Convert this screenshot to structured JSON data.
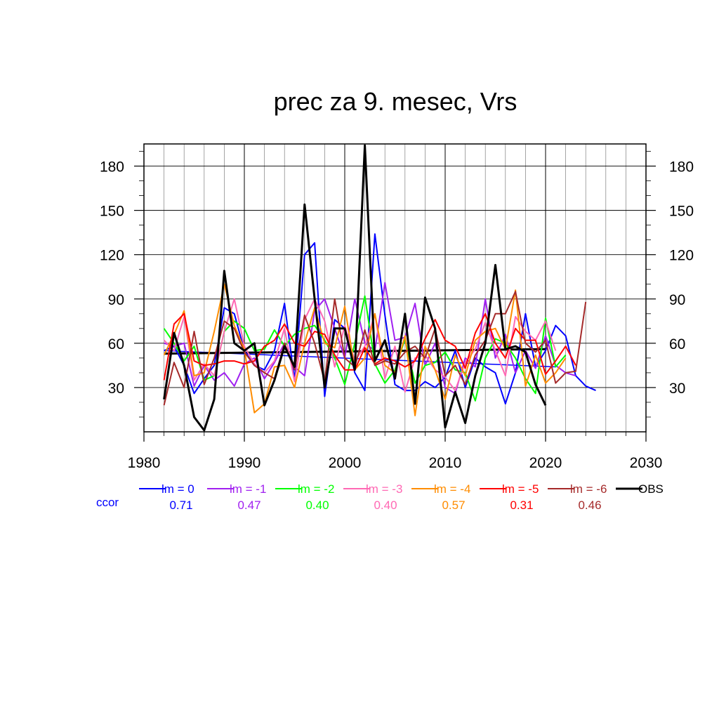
{
  "chart_data": {
    "type": "line",
    "title": "prec za 9. mesec, Vrs",
    "xlabel": "",
    "ylabel": "",
    "xlim": [
      1980,
      2030
    ],
    "ylim": [
      0,
      195
    ],
    "x_ticks": [
      1980,
      1990,
      2000,
      2010,
      2020,
      2030
    ],
    "y_ticks": [
      30,
      60,
      90,
      120,
      150,
      180
    ],
    "grid": true,
    "legend_position": "bottom",
    "ccor_label": "ccor",
    "series": [
      {
        "name": "lm = 0",
        "color": "#0000ff",
        "ccor": "0.71",
        "x_start": 1982,
        "values": [
          55,
          58,
          45,
          26,
          36,
          45,
          84,
          80,
          55,
          45,
          42,
          55,
          87,
          35,
          120,
          128,
          24,
          76,
          70,
          40,
          28,
          134,
          79,
          32,
          28,
          28,
          34,
          30,
          37,
          55,
          30,
          50,
          44,
          40,
          19,
          40,
          80,
          44,
          55,
          72,
          65,
          38,
          31,
          28
        ]
      },
      {
        "name": "lm = -1",
        "color": "#a020f0",
        "ccor": "0.47",
        "x_start": 1982,
        "values": [
          60,
          58,
          60,
          31,
          45,
          35,
          40,
          31,
          46,
          50,
          36,
          47,
          60,
          44,
          38,
          82,
          90,
          70,
          50,
          90,
          60,
          55,
          101,
          62,
          64,
          87,
          45,
          60,
          30,
          26,
          50,
          44,
          90,
          50,
          66,
          40,
          55,
          43,
          65,
          45,
          40,
          38
        ]
      },
      {
        "name": "lm = -2",
        "color": "#00ff00",
        "ccor": "0.40",
        "x_start": 1982,
        "values": [
          70,
          60,
          48,
          58,
          35,
          38,
          68,
          75,
          70,
          55,
          56,
          69,
          58,
          66,
          70,
          72,
          62,
          50,
          32,
          60,
          92,
          46,
          33,
          42,
          63,
          33,
          45,
          47,
          54,
          42,
          40,
          21,
          50,
          63,
          60,
          50,
          36,
          26,
          77,
          44,
          52
        ]
      },
      {
        "name": "lm = -3",
        "color": "#ff69b4",
        "ccor": "0.40",
        "x_start": 1982,
        "values": [
          62,
          55,
          78,
          35,
          46,
          38,
          68,
          90,
          58,
          46,
          40,
          48,
          70,
          34,
          76,
          90,
          75,
          44,
          72,
          48,
          58,
          80,
          36,
          58,
          27,
          50,
          52,
          42,
          37,
          28,
          47,
          56,
          74,
          55,
          38,
          78,
          68,
          62,
          75,
          55
        ]
      },
      {
        "name": "lm = -4",
        "color": "#ff8c00",
        "ccor": "0.57",
        "x_start": 1982,
        "values": [
          52,
          66,
          82,
          38,
          40,
          68,
          100,
          72,
          56,
          13,
          19,
          44,
          45,
          30,
          60,
          84,
          60,
          57,
          85,
          42,
          50,
          80,
          45,
          40,
          65,
          11,
          58,
          42,
          22,
          52,
          38,
          62,
          68,
          70,
          56,
          96,
          31,
          52,
          33,
          40,
          50
        ]
      },
      {
        "name": "lm = -5",
        "color": "#ff0000",
        "ccor": "0.31",
        "x_start": 1982,
        "values": [
          35,
          73,
          80,
          48,
          45,
          46,
          48,
          48,
          46,
          48,
          58,
          62,
          73,
          60,
          58,
          68,
          66,
          52,
          42,
          42,
          57,
          46,
          50,
          48,
          44,
          48,
          63,
          76,
          62,
          58,
          43,
          67,
          80,
          60,
          50,
          70,
          62,
          62,
          39,
          48,
          58,
          45
        ]
      },
      {
        "name": "lm = -6",
        "color": "#a52a2a",
        "ccor": "0.46",
        "x_start": 1982,
        "values": [
          18,
          47,
          30,
          68,
          32,
          50,
          75,
          70,
          54,
          45,
          40,
          36,
          60,
          42,
          79,
          60,
          34,
          90,
          50,
          44,
          69,
          45,
          48,
          46,
          54,
          58,
          50,
          70,
          38,
          45,
          32,
          52,
          62,
          80,
          80,
          95,
          60,
          54,
          62,
          33,
          40,
          41,
          88
        ]
      },
      {
        "name": "OBS",
        "color": "#000000",
        "ccor": "",
        "x_start": 1982,
        "values": [
          22,
          67,
          45,
          10,
          1,
          22,
          109,
          60,
          55,
          60,
          18,
          35,
          58,
          44,
          154,
          90,
          30,
          70,
          70,
          42,
          194,
          48,
          62,
          36,
          80,
          19,
          91,
          70,
          3,
          27,
          6,
          38,
          60,
          113,
          56,
          58,
          54,
          32,
          18
        ]
      }
    ],
    "trend_lines": [
      {
        "color": "#0000ff",
        "width": 1.5,
        "x": [
          1982,
          2021
        ],
        "values": [
          55,
          44
        ]
      },
      {
        "color": "#000000",
        "width": 3,
        "x": [
          1982,
          2020
        ],
        "values": [
          53,
          56
        ]
      }
    ]
  }
}
